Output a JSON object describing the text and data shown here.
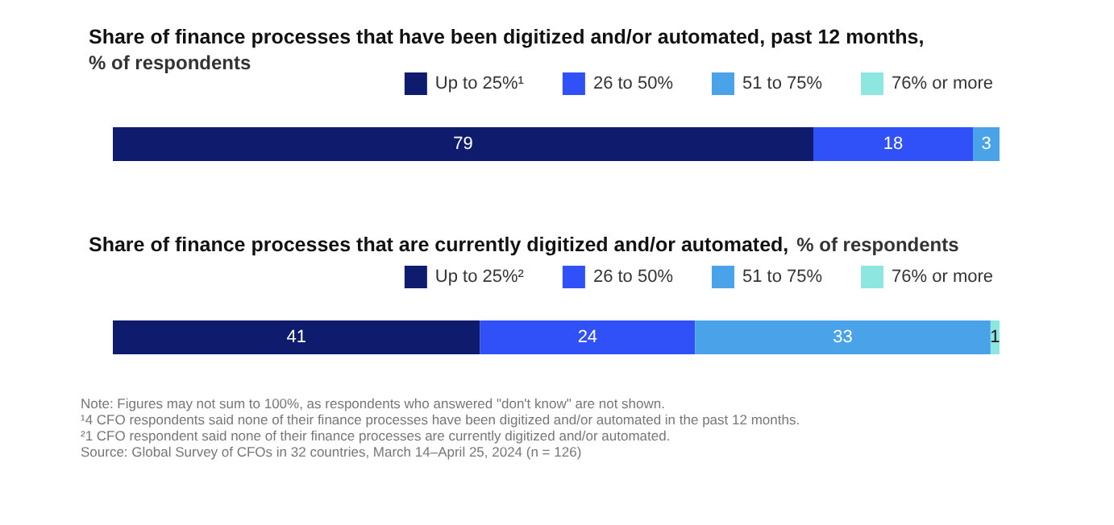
{
  "chart_data": [
    {
      "type": "bar",
      "orientation": "horizontal",
      "stacked": true,
      "data_labels": true,
      "legend": "top right",
      "title": "Share of finance processes that have been digitized and/or automated, past 12 months,",
      "subtitle": "% of respondents",
      "categories": [
        null
      ],
      "series": [
        {
          "name": "Up to 25%¹",
          "color": "#0f1c6e",
          "values": [
            79
          ]
        },
        {
          "name": "26 to 50%",
          "color": "#3050f8",
          "values": [
            18
          ]
        },
        {
          "name": "51 to 75%",
          "color": "#4aa3e8",
          "values": [
            3
          ]
        },
        {
          "name": "76% or more",
          "color": "#8ee6e0",
          "values": [
            null
          ]
        }
      ]
    },
    {
      "type": "bar",
      "orientation": "horizontal",
      "stacked": true,
      "data_labels": true,
      "legend": "top right",
      "title": "Share of finance processes that are currently digitized and/or automated,",
      "subtitle": "% of respondents",
      "categories": [
        null
      ],
      "series": [
        {
          "name": "Up to 25%²",
          "color": "#0f1c6e",
          "values": [
            41
          ]
        },
        {
          "name": "26 to 50%",
          "color": "#3050f8",
          "values": [
            24
          ]
        },
        {
          "name": "51 to 75%",
          "color": "#4aa3e8",
          "values": [
            33
          ]
        },
        {
          "name": "76% or more",
          "color": "#8ee6e0",
          "values": [
            1
          ]
        }
      ],
      "annotations": [
        "Note: Figures may not sum to 100%, as respondents who answered \"don't know\" are not shown.",
        "¹4 CFO respondents said none of their finance processes have been digitized and/or automated in the past 12 months.",
        "²1 CFO respondent said none of their finance processes are currently digitized and/or automated.",
        "Source: Global Survey of CFOs in 32 countries, March 14–April 25, 2024 (n = 126)"
      ]
    }
  ]
}
